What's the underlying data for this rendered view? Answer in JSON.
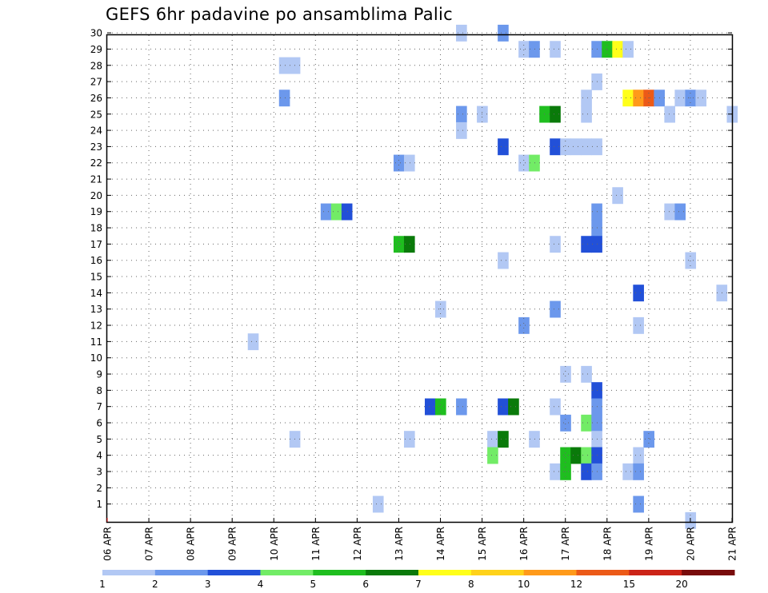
{
  "chart_data": {
    "type": "heatmap",
    "title": "GEFS 6hr padavine po ansamblima Palic",
    "xlabel": "",
    "ylabel": "",
    "x_range": [
      0,
      60
    ],
    "y_range": [
      0,
      30
    ],
    "x_ticks": [
      {
        "x": 0,
        "label": "06 APR"
      },
      {
        "x": 4,
        "label": "07 APR"
      },
      {
        "x": 8,
        "label": "08 APR"
      },
      {
        "x": 12,
        "label": "09 APR"
      },
      {
        "x": 16,
        "label": "10 APR"
      },
      {
        "x": 20,
        "label": "11 APR"
      },
      {
        "x": 24,
        "label": "12 APR"
      },
      {
        "x": 28,
        "label": "13 APR"
      },
      {
        "x": 32,
        "label": "14 APR"
      },
      {
        "x": 36,
        "label": "15 APR"
      },
      {
        "x": 40,
        "label": "16 APR"
      },
      {
        "x": 44,
        "label": "17 APR"
      },
      {
        "x": 48,
        "label": "18 APR"
      },
      {
        "x": 52,
        "label": "19 APR"
      },
      {
        "x": 56,
        "label": "20 APR"
      },
      {
        "x": 60,
        "label": "21 APR"
      }
    ],
    "y_ticks": [
      "1",
      "2",
      "3",
      "4",
      "5",
      "6",
      "7",
      "8",
      "9",
      "10",
      "11",
      "12",
      "13",
      "14",
      "15",
      "16",
      "17",
      "18",
      "19",
      "20",
      "21",
      "22",
      "23",
      "24",
      "25",
      "26",
      "27",
      "28",
      "29",
      "30"
    ],
    "color_scale": {
      "labels": [
        "1",
        "2",
        "3",
        "4",
        "5",
        "6",
        "7",
        "8",
        "10",
        "12",
        "15",
        "20"
      ],
      "colors": [
        "#b2c8f4",
        "#6c98ec",
        "#2250d8",
        "#72ec66",
        "#1fbe1f",
        "#0a7a0a",
        "#ffff1a",
        "#ffd21a",
        "#ff9a1a",
        "#ec5a18",
        "#cc2418",
        "#780c0c"
      ]
    },
    "cells": [
      [
        34,
        30,
        1
      ],
      [
        38,
        30,
        2
      ],
      [
        40,
        29,
        1
      ],
      [
        41,
        29,
        2
      ],
      [
        43,
        29,
        1
      ],
      [
        47,
        29,
        2
      ],
      [
        48,
        29,
        5
      ],
      [
        49,
        29,
        7
      ],
      [
        50,
        29,
        1
      ],
      [
        17,
        28,
        1
      ],
      [
        18,
        28,
        1
      ],
      [
        47,
        27,
        1
      ],
      [
        17,
        26,
        2
      ],
      [
        50,
        26,
        7
      ],
      [
        51,
        26,
        9
      ],
      [
        52,
        26,
        10
      ],
      [
        53,
        26,
        2
      ],
      [
        55,
        26,
        1
      ],
      [
        56,
        26,
        2
      ],
      [
        57,
        26,
        1
      ],
      [
        46,
        26,
        1
      ],
      [
        34,
        25,
        2
      ],
      [
        36,
        25,
        1
      ],
      [
        42,
        25,
        5
      ],
      [
        43,
        25,
        6
      ],
      [
        46,
        25,
        1
      ],
      [
        54,
        25,
        1
      ],
      [
        60,
        25,
        1
      ],
      [
        34,
        24,
        1
      ],
      [
        38,
        23,
        3
      ],
      [
        43,
        23,
        3
      ],
      [
        44,
        23,
        1
      ],
      [
        45,
        23,
        1
      ],
      [
        46,
        23,
        1
      ],
      [
        47,
        23,
        1
      ],
      [
        28,
        22,
        2
      ],
      [
        29,
        22,
        1
      ],
      [
        40,
        22,
        1
      ],
      [
        41,
        22,
        4
      ],
      [
        49,
        20,
        1
      ],
      [
        21,
        19,
        2
      ],
      [
        22,
        19,
        4
      ],
      [
        23,
        19,
        3
      ],
      [
        47,
        19,
        2
      ],
      [
        54,
        19,
        1
      ],
      [
        55,
        19,
        2
      ],
      [
        47,
        18,
        2
      ],
      [
        28,
        17,
        5
      ],
      [
        29,
        17,
        6
      ],
      [
        43,
        17,
        1
      ],
      [
        46,
        17,
        3
      ],
      [
        47,
        17,
        3
      ],
      [
        38,
        16,
        1
      ],
      [
        56,
        16,
        1
      ],
      [
        51,
        14,
        3
      ],
      [
        59,
        14,
        1
      ],
      [
        32,
        13,
        1
      ],
      [
        43,
        13,
        2
      ],
      [
        40,
        12,
        2
      ],
      [
        51,
        12,
        1
      ],
      [
        14,
        11,
        1
      ],
      [
        44,
        9,
        1
      ],
      [
        46,
        9,
        1
      ],
      [
        47,
        8,
        3
      ],
      [
        31,
        7,
        3
      ],
      [
        32,
        7,
        5
      ],
      [
        34,
        7,
        2
      ],
      [
        38,
        7,
        3
      ],
      [
        39,
        7,
        6
      ],
      [
        43,
        7,
        1
      ],
      [
        47,
        7,
        2
      ],
      [
        44,
        6,
        2
      ],
      [
        46,
        6,
        4
      ],
      [
        47,
        6,
        2
      ],
      [
        18,
        5,
        1
      ],
      [
        29,
        5,
        1
      ],
      [
        37,
        5,
        1
      ],
      [
        38,
        5,
        6
      ],
      [
        41,
        5,
        1
      ],
      [
        47,
        5,
        1
      ],
      [
        52,
        5,
        2
      ],
      [
        37,
        4,
        4
      ],
      [
        44,
        4,
        5
      ],
      [
        45,
        4,
        6
      ],
      [
        46,
        4,
        4
      ],
      [
        47,
        4,
        3
      ],
      [
        51,
        4,
        1
      ],
      [
        43,
        3,
        1
      ],
      [
        44,
        3,
        5
      ],
      [
        46,
        3,
        3
      ],
      [
        47,
        3,
        2
      ],
      [
        50,
        3,
        1
      ],
      [
        51,
        3,
        2
      ],
      [
        26,
        1,
        1
      ],
      [
        51,
        1,
        2
      ],
      [
        56,
        0,
        1
      ]
    ]
  }
}
